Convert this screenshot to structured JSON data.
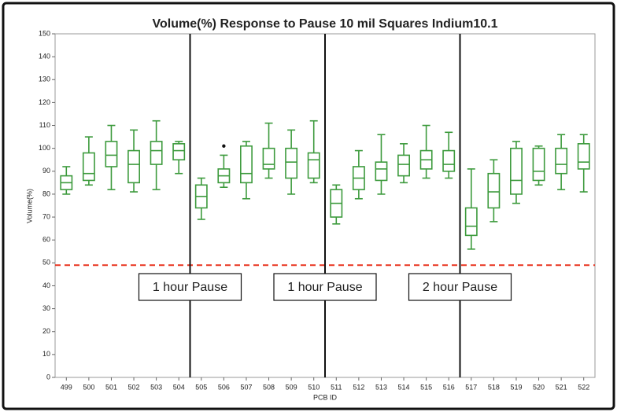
{
  "chart_data": {
    "type": "box",
    "title": "Volume(%) Response to Pause 10 mil Squares Indium10.1",
    "x_label": "PCB ID",
    "y_label": "Volume(%)",
    "categories": [
      "499",
      "500",
      "501",
      "502",
      "503",
      "504",
      "505",
      "506",
      "507",
      "508",
      "509",
      "510",
      "511",
      "512",
      "513",
      "514",
      "515",
      "516",
      "517",
      "518",
      "519",
      "520",
      "521",
      "522"
    ],
    "color": "#3c9a3c",
    "whisker_low": [
      80,
      84,
      82,
      81,
      82,
      89,
      69,
      83,
      78,
      87,
      80,
      85,
      67,
      78,
      80,
      85,
      87,
      87,
      56,
      68,
      76,
      84,
      82,
      81
    ],
    "q1": [
      82,
      86,
      92,
      85,
      93,
      95,
      74,
      85,
      85,
      91,
      87,
      87,
      70,
      82,
      86,
      88,
      91,
      90,
      62,
      74,
      80,
      86,
      89,
      91
    ],
    "median": [
      85,
      89,
      97,
      93,
      99,
      99,
      79,
      88,
      89,
      93,
      94,
      95,
      76,
      87,
      91,
      93,
      95,
      93,
      66,
      81,
      86,
      90,
      93,
      94
    ],
    "q3": [
      88,
      98,
      103,
      99,
      103,
      102,
      84,
      91,
      101,
      100,
      100,
      98,
      82,
      92,
      94,
      97,
      99,
      99,
      74,
      89,
      100,
      100,
      100,
      102
    ],
    "whisker_high": [
      92,
      105,
      110,
      108,
      112,
      103,
      87,
      97,
      103,
      111,
      108,
      112,
      84,
      99,
      106,
      102,
      110,
      107,
      91,
      95,
      103,
      101,
      106,
      106
    ],
    "outliers": [
      null,
      null,
      null,
      null,
      null,
      null,
      null,
      [
        101
      ],
      null,
      null,
      null,
      null,
      null,
      null,
      null,
      null,
      null,
      null,
      null,
      null,
      null,
      null,
      null,
      null
    ],
    "reference_line": {
      "value": 49,
      "color": "#e8321e"
    },
    "annotations": [
      "1 hour Pause",
      "1 hour Pause",
      "2 hour Pause"
    ],
    "ylim": [
      0,
      150
    ],
    "yticks": [
      0,
      10,
      20,
      30,
      40,
      50,
      60,
      70,
      80,
      90,
      100,
      110,
      120,
      130,
      140,
      150
    ]
  }
}
